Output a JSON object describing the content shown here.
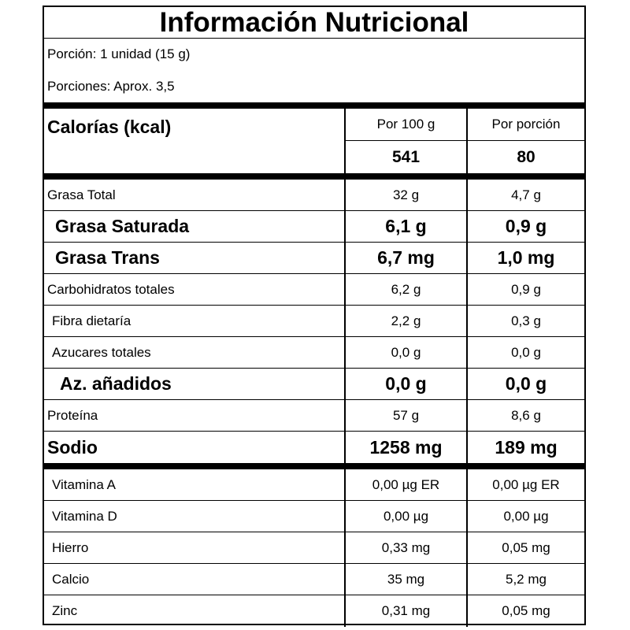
{
  "title": "Información Nutricional",
  "serving": {
    "size": "Porción: 1 unidad (15 g)",
    "count": "Porciones: Aprox. 3,5"
  },
  "calories": {
    "label": "Calorías (kcal)",
    "col1_header": "Por 100 g",
    "col2_header": "Por porción",
    "col1_value": "541",
    "col2_value": "80"
  },
  "nutrients": [
    {
      "name": "Grasa Total",
      "per100": "32 g",
      "perServing": "4,7 g"
    },
    {
      "name": "Grasa Saturada",
      "per100": "6,1 g",
      "perServing": "0,9 g"
    },
    {
      "name": "Grasa Trans",
      "per100": "6,7 mg",
      "perServing": "1,0 mg"
    },
    {
      "name": "Carbohidratos totales",
      "per100": "6,2 g",
      "perServing": "0,9 g"
    },
    {
      "name": "Fibra dietaría",
      "per100": "2,2 g",
      "perServing": "0,3 g"
    },
    {
      "name": "Azucares totales",
      "per100": "0,0 g",
      "perServing": "0,0 g"
    },
    {
      "name": "Az. añadidos",
      "per100": "0,0 g",
      "perServing": "0,0 g"
    },
    {
      "name": "Proteína",
      "per100": "57 g",
      "perServing": "8,6 g"
    },
    {
      "name": "Sodio",
      "per100": "1258 mg",
      "perServing": "189 mg"
    }
  ],
  "vitamins": [
    {
      "name": "Vitamina A",
      "per100": "0,00 µg ER",
      "perServing": "0,00 µg ER"
    },
    {
      "name": "Vitamina D",
      "per100": "0,00 µg",
      "perServing": "0,00 µg"
    },
    {
      "name": "Hierro",
      "per100": "0,33 mg",
      "perServing": "0,05 mg"
    },
    {
      "name": "Calcio",
      "per100": "35 mg",
      "perServing": "5,2 mg"
    },
    {
      "name": "Zinc",
      "per100": "0,31 mg",
      "perServing": "0,05 mg"
    }
  ]
}
